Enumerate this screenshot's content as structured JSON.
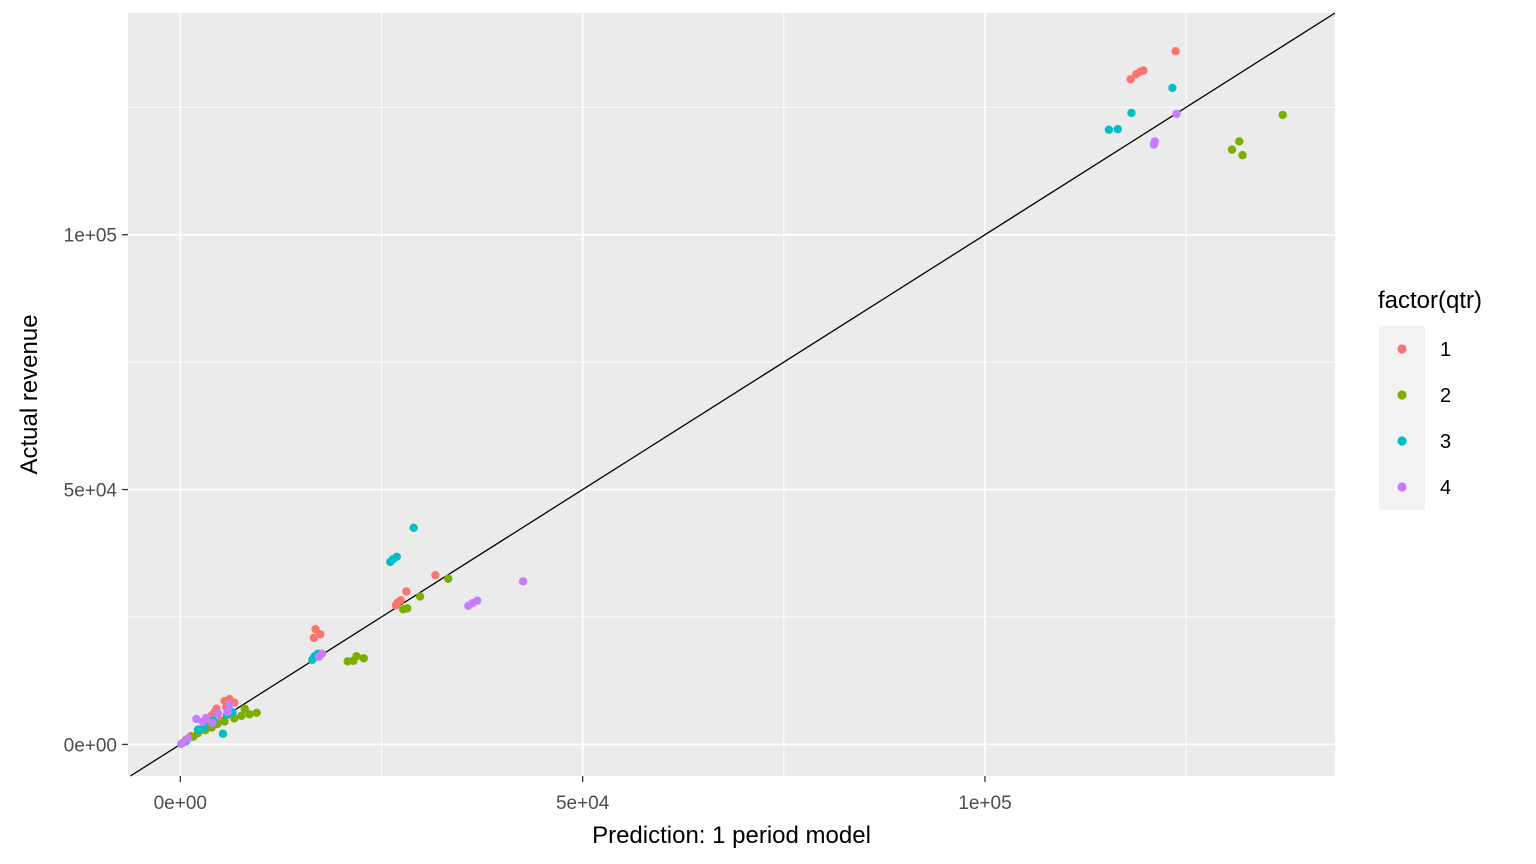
{
  "chart_data": {
    "type": "scatter",
    "title": "",
    "xlabel": "Prediction: 1 period model",
    "ylabel": "Actual revenue",
    "xlim": [
      -6500,
      143500
    ],
    "ylim": [
      -6200,
      143500
    ],
    "x_ticks": [
      0,
      50000,
      100000
    ],
    "x_tick_labels": [
      "0e+00",
      "5e+04",
      "1e+05"
    ],
    "y_ticks": [
      0,
      50000,
      100000
    ],
    "y_tick_labels": [
      "0e+00",
      "5e+04",
      "1e+05"
    ],
    "grid": true,
    "panel_background": "#ebebeb",
    "reference_line": {
      "type": "identity",
      "slope": 1,
      "intercept": 0,
      "color": "#000000"
    },
    "legend": {
      "title": "factor(qtr)",
      "position": "right",
      "entries": [
        "1",
        "2",
        "3",
        "4"
      ]
    },
    "series": [
      {
        "name": "1",
        "color": "#F8766D",
        "points": [
          [
            123700,
            136000
          ],
          [
            118100,
            130500
          ],
          [
            118800,
            131500
          ],
          [
            119300,
            132000
          ],
          [
            119700,
            132200
          ],
          [
            31700,
            33200
          ],
          [
            28100,
            30000
          ],
          [
            27400,
            28300
          ],
          [
            27000,
            27800
          ],
          [
            26800,
            27300
          ],
          [
            16800,
            22600
          ],
          [
            16600,
            20900
          ],
          [
            17400,
            21600
          ],
          [
            6100,
            8900
          ],
          [
            5500,
            8500
          ],
          [
            6700,
            8200
          ],
          [
            4500,
            7000
          ],
          [
            4300,
            6400
          ],
          [
            5700,
            7300
          ],
          [
            3900,
            5700
          ],
          [
            6200,
            5900
          ],
          [
            2500,
            2900
          ],
          [
            1300,
            1600
          ],
          [
            700,
            900
          ],
          [
            5000,
            4700
          ]
        ]
      },
      {
        "name": "2",
        "color": "#7CAE00",
        "points": [
          [
            137000,
            123500
          ],
          [
            131600,
            118300
          ],
          [
            130700,
            116700
          ],
          [
            132000,
            115600
          ],
          [
            33300,
            32500
          ],
          [
            29800,
            29000
          ],
          [
            28200,
            26700
          ],
          [
            27700,
            26500
          ],
          [
            22800,
            16900
          ],
          [
            21900,
            17300
          ],
          [
            21500,
            16400
          ],
          [
            20800,
            16300
          ],
          [
            9500,
            6200
          ],
          [
            8600,
            5900
          ],
          [
            7600,
            5600
          ],
          [
            6700,
            5100
          ],
          [
            5500,
            4500
          ],
          [
            4600,
            4000
          ],
          [
            3900,
            3300
          ],
          [
            3100,
            2800
          ],
          [
            2200,
            2200
          ],
          [
            1600,
            1500
          ],
          [
            8000,
            7000
          ],
          [
            3500,
            3600
          ]
        ]
      },
      {
        "name": "3",
        "color": "#00BFC4",
        "points": [
          [
            123300,
            128800
          ],
          [
            118200,
            123900
          ],
          [
            116500,
            120700
          ],
          [
            115400,
            120600
          ],
          [
            29000,
            42500
          ],
          [
            26900,
            36800
          ],
          [
            26400,
            36300
          ],
          [
            26100,
            35800
          ],
          [
            17100,
            17800
          ],
          [
            16700,
            17300
          ],
          [
            16400,
            16600
          ],
          [
            5300,
            2100
          ],
          [
            4100,
            4700
          ],
          [
            3000,
            3400
          ],
          [
            5800,
            5800
          ],
          [
            2200,
            2900
          ],
          [
            700,
            600
          ],
          [
            6500,
            6300
          ]
        ]
      },
      {
        "name": "4",
        "color": "#C77CFF",
        "points": [
          [
            123800,
            123700
          ],
          [
            121100,
            118300
          ],
          [
            121000,
            117700
          ],
          [
            42600,
            32000
          ],
          [
            36900,
            28200
          ],
          [
            36300,
            27700
          ],
          [
            35800,
            27200
          ],
          [
            17600,
            17800
          ],
          [
            17200,
            17200
          ],
          [
            2000,
            5000
          ],
          [
            3200,
            5200
          ],
          [
            4700,
            6100
          ],
          [
            6100,
            7800
          ],
          [
            5900,
            6400
          ],
          [
            1000,
            1200
          ],
          [
            300,
            300
          ],
          [
            100,
            100
          ],
          [
            2800,
            4400
          ],
          [
            4000,
            4200
          ]
        ]
      }
    ]
  }
}
